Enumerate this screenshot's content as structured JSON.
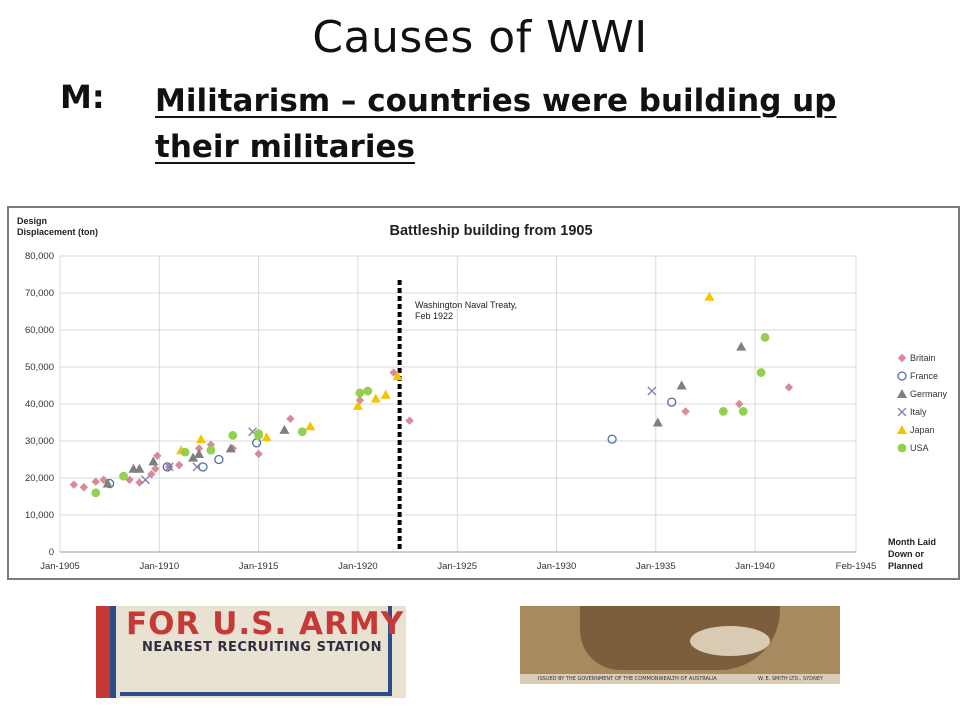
{
  "slide": {
    "title": "Causes of WWI",
    "letter": "M:",
    "heading": "Militarism – countries were building up their militaries"
  },
  "chart_data": {
    "type": "scatter",
    "title": "Battleship building from 1905",
    "ylabel": "Design\nDisplacement (ton)",
    "xlabel": "Month Laid\nDown or\nPlanned",
    "ylim": [
      0,
      80000
    ],
    "y_ticks": [
      0,
      10000,
      20000,
      30000,
      40000,
      50000,
      60000,
      70000,
      80000
    ],
    "y_tick_labels": [
      "0",
      "10,000",
      "20,000",
      "30,000",
      "40,000",
      "50,000",
      "60,000",
      "70,000",
      "80,000"
    ],
    "xlim": [
      1905.0,
      1945.08
    ],
    "x_ticks": [
      1905.0,
      1910.0,
      1915.0,
      1920.0,
      1925.0,
      1930.0,
      1935.0,
      1940.0,
      1945.08
    ],
    "x_tick_labels": [
      "Jan-1905",
      "Jan-1910",
      "Jan-1915",
      "Jan-1920",
      "Jan-1925",
      "Jan-1930",
      "Jan-1935",
      "Jan-1940",
      "Feb-1945"
    ],
    "grid": true,
    "legend_position": "right",
    "annotation": {
      "text": [
        "Washington Naval Treaty,",
        "Feb 1922"
      ],
      "x": 1922.1
    },
    "series": [
      {
        "name": "Britain",
        "marker": "diamond",
        "color": "#d8899a",
        "points": [
          [
            1905.7,
            18200
          ],
          [
            1906.2,
            17500
          ],
          [
            1906.8,
            19000
          ],
          [
            1907.2,
            19500
          ],
          [
            1908.5,
            19500
          ],
          [
            1909.0,
            18800
          ],
          [
            1909.6,
            21000
          ],
          [
            1909.8,
            22500
          ],
          [
            1909.9,
            26000
          ],
          [
            1910.5,
            23000
          ],
          [
            1911.0,
            23500
          ],
          [
            1912.0,
            28000
          ],
          [
            1912.6,
            29000
          ],
          [
            1913.7,
            28000
          ],
          [
            1915.0,
            26500
          ],
          [
            1916.6,
            36000
          ],
          [
            1920.1,
            41000
          ],
          [
            1921.8,
            48500
          ],
          [
            1922.6,
            35500
          ],
          [
            1936.5,
            38000
          ],
          [
            1939.2,
            40000
          ],
          [
            1941.7,
            44500
          ]
        ]
      },
      {
        "name": "France",
        "marker": "circle-open",
        "color": "#4f6fa8",
        "points": [
          [
            1907.5,
            18500
          ],
          [
            1910.4,
            23000
          ],
          [
            1912.2,
            23000
          ],
          [
            1913.0,
            25000
          ],
          [
            1914.9,
            29500
          ],
          [
            1932.8,
            30500
          ],
          [
            1935.8,
            40500
          ]
        ]
      },
      {
        "name": "Germany",
        "marker": "triangle",
        "color": "#7f7f7f",
        "points": [
          [
            1907.4,
            18500
          ],
          [
            1908.7,
            22500
          ],
          [
            1909.0,
            22500
          ],
          [
            1909.7,
            24500
          ],
          [
            1911.7,
            25500
          ],
          [
            1912.0,
            26500
          ],
          [
            1913.6,
            28000
          ],
          [
            1916.3,
            33000
          ],
          [
            1935.1,
            35000
          ],
          [
            1936.3,
            45000
          ],
          [
            1939.3,
            55500
          ]
        ]
      },
      {
        "name": "Italy",
        "marker": "x",
        "color": "#8a7fb0",
        "points": [
          [
            1909.3,
            19500
          ],
          [
            1910.5,
            23000
          ],
          [
            1911.9,
            23000
          ],
          [
            1914.7,
            32500
          ],
          [
            1934.8,
            43500
          ]
        ]
      },
      {
        "name": "Japan",
        "marker": "triangle",
        "color": "#f5c400",
        "points": [
          [
            1911.1,
            27500
          ],
          [
            1912.1,
            30500
          ],
          [
            1915.4,
            31000
          ],
          [
            1917.6,
            34000
          ],
          [
            1920.0,
            39500
          ],
          [
            1920.9,
            41500
          ],
          [
            1921.4,
            42500
          ],
          [
            1922.0,
            47500
          ],
          [
            1937.7,
            69000
          ]
        ]
      },
      {
        "name": "USA",
        "marker": "circle",
        "color": "#92d050",
        "points": [
          [
            1906.8,
            16000
          ],
          [
            1908.2,
            20500
          ],
          [
            1911.3,
            27000
          ],
          [
            1912.6,
            27500
          ],
          [
            1913.7,
            31500
          ],
          [
            1915.0,
            32000
          ],
          [
            1917.2,
            32500
          ],
          [
            1920.1,
            43000
          ],
          [
            1920.5,
            43500
          ],
          [
            1915.0,
            31500
          ],
          [
            1938.4,
            38000
          ],
          [
            1939.4,
            38000
          ],
          [
            1940.3,
            48500
          ],
          [
            1940.5,
            58000
          ]
        ]
      }
    ]
  },
  "posters": {
    "left_line1": "FOR U.S. ARMY",
    "left_line2": "NEAREST RECRUITING STATION",
    "right_caption_left": "ISSUED BY THE GOVERNMENT OF THE COMMONWEALTH OF AUSTRALIA",
    "right_caption_right": "W. E. SMITH LTD., SYDNEY"
  },
  "colors": {
    "annotation_line": "#000000",
    "grid": "#d9d9d9",
    "poster_red": "#c53a36",
    "poster_blue": "#2e4d86"
  }
}
